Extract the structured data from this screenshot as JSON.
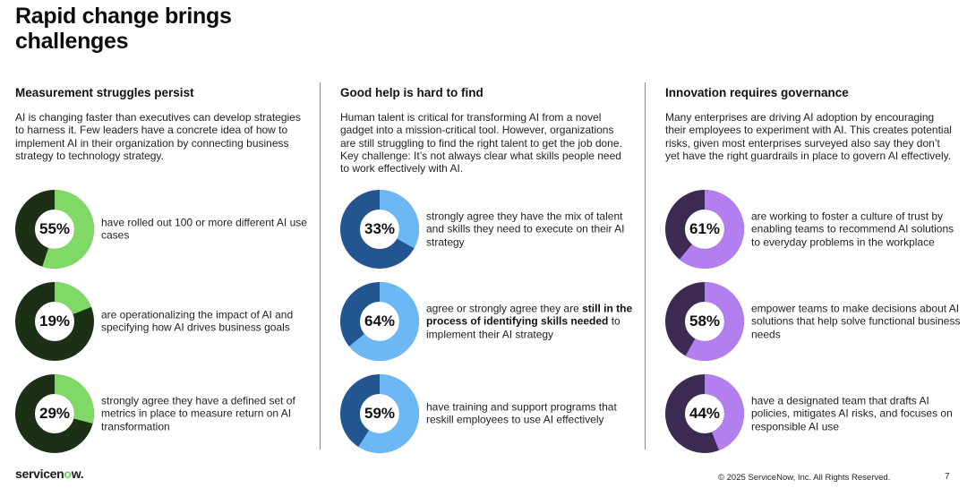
{
  "title": "Rapid change brings challenges",
  "columns": [
    {
      "heading": "Measurement struggles persist",
      "intro": "AI is changing faster than executives can develop strategies to harness it. Few leaders have a concrete idea of how to implement AI in their organization by connecting business strategy to technology strategy.",
      "track_color": "#1c3016",
      "fill_color": "#80d966",
      "stats": [
        {
          "pct": "55%",
          "value": 55,
          "text": "have rolled out 100 or more different AI use cases"
        },
        {
          "pct": "19%",
          "value": 19,
          "text": "are operationalizing the impact of AI and specifying how AI drives business goals"
        },
        {
          "pct": "29%",
          "value": 29,
          "text": "strongly agree they have a defined set of metrics in place to measure return on AI transformation"
        }
      ]
    },
    {
      "heading": "Good help is hard to find",
      "intro": "Human talent is critical for transforming AI from a novel gadget into a mission-critical tool. However, organizations are still struggling to find the right talent to get the job done. Key challenge: It’s not always clear what skills people need to work effectively with AI.",
      "track_color": "#235590",
      "fill_color": "#6cb8f4",
      "stats": [
        {
          "pct": "33%",
          "value": 33,
          "text": "strongly agree they have the mix of talent and skills they need to execute on their AI strategy"
        },
        {
          "pct": "64%",
          "value": 64,
          "text_before": "agree or strongly agree they are ",
          "text_bold": "still in the process of identifying skills needed",
          "text_after": " to implement their AI strategy"
        },
        {
          "pct": "59%",
          "value": 59,
          "text": "have training and support programs that reskill employees to use AI effectively"
        }
      ]
    },
    {
      "heading": "Innovation requires governance",
      "intro": "Many enterprises are driving AI adoption by encouraging their employees to experiment with AI. This creates potential risks, given most enterprises surveyed also say they don’t yet have the right guardrails in place to govern AI effectively.",
      "track_color": "#3d2a52",
      "fill_color": "#b27ef0",
      "stats": [
        {
          "pct": "61%",
          "value": 61,
          "text": "are working to foster a culture of trust by enabling teams to recommend AI solutions to everyday problems in the workplace"
        },
        {
          "pct": "58%",
          "value": 58,
          "text": "empower teams to make decisions about AI solutions that help solve functional business needs"
        },
        {
          "pct": "44%",
          "value": 44,
          "text": "have a designated team that drafts AI policies, mitigates AI risks, and focuses on responsible AI use"
        }
      ]
    }
  ],
  "footer": {
    "logo_prefix": "servicen",
    "logo_o": "o",
    "logo_suffix": "w.",
    "copyright": "© 2025 ServiceNow, Inc. All Rights Reserved.",
    "page_number": "7"
  }
}
